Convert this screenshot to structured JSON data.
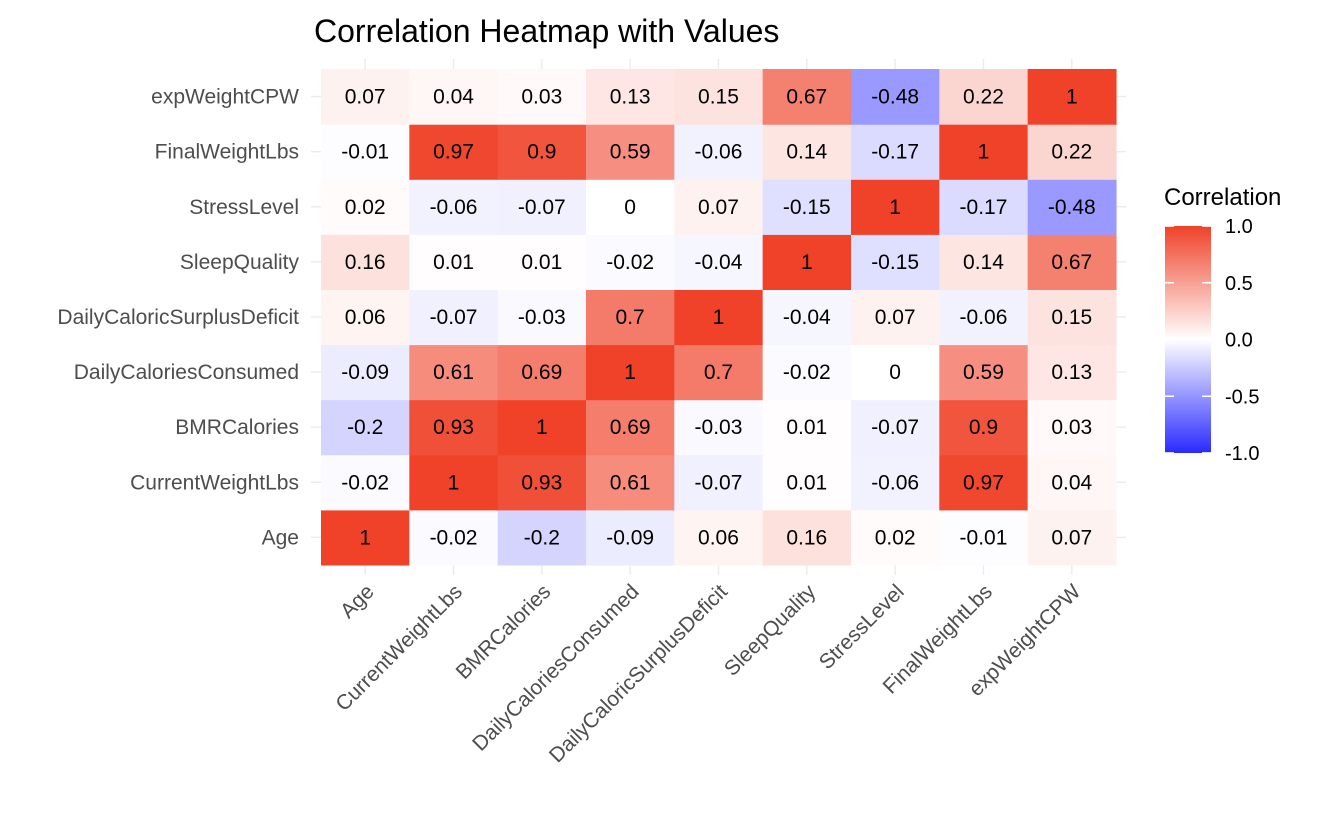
{
  "chart_data": {
    "type": "heatmap",
    "title": "Correlation Heatmap with Values",
    "xlabel": "",
    "ylabel": "",
    "variables": [
      "Age",
      "CurrentWeightLbs",
      "BMRCalories",
      "DailyCaloriesConsumed",
      "DailyCaloricSurplusDeficit",
      "SleepQuality",
      "StressLevel",
      "FinalWeightLbs",
      "expWeightCPW"
    ],
    "matrix": [
      [
        1,
        -0.02,
        -0.2,
        -0.09,
        0.06,
        0.16,
        0.02,
        -0.01,
        0.07
      ],
      [
        -0.02,
        1,
        0.93,
        0.61,
        -0.07,
        0.01,
        -0.06,
        0.97,
        0.04
      ],
      [
        -0.2,
        0.93,
        1,
        0.69,
        -0.03,
        0.01,
        -0.07,
        0.9,
        0.03
      ],
      [
        -0.09,
        0.61,
        0.69,
        1,
        0.7,
        -0.02,
        0,
        0.59,
        0.13
      ],
      [
        0.06,
        -0.07,
        -0.03,
        0.7,
        1,
        -0.04,
        0.07,
        -0.06,
        0.15
      ],
      [
        0.16,
        0.01,
        0.01,
        -0.02,
        -0.04,
        1,
        -0.15,
        0.14,
        0.67
      ],
      [
        0.02,
        -0.06,
        -0.07,
        0,
        0.07,
        -0.15,
        1,
        -0.17,
        -0.48
      ],
      [
        -0.01,
        0.97,
        0.9,
        0.59,
        -0.06,
        0.14,
        -0.17,
        1,
        0.22
      ],
      [
        0.07,
        0.04,
        0.03,
        0.13,
        0.15,
        0.67,
        -0.48,
        0.22,
        1
      ]
    ],
    "legend": {
      "title": "Correlation",
      "placement": "right",
      "range": [
        -1,
        1
      ],
      "ticks": [
        "1.0",
        "0.5",
        "0.0",
        "-0.5",
        "-1.0"
      ],
      "tick_values": [
        1,
        0.5,
        0,
        -0.5,
        -1
      ]
    },
    "colors": {
      "low": "#2a2aff",
      "mid": "#ffffff",
      "high": "#ef4229"
    },
    "grid": true
  }
}
